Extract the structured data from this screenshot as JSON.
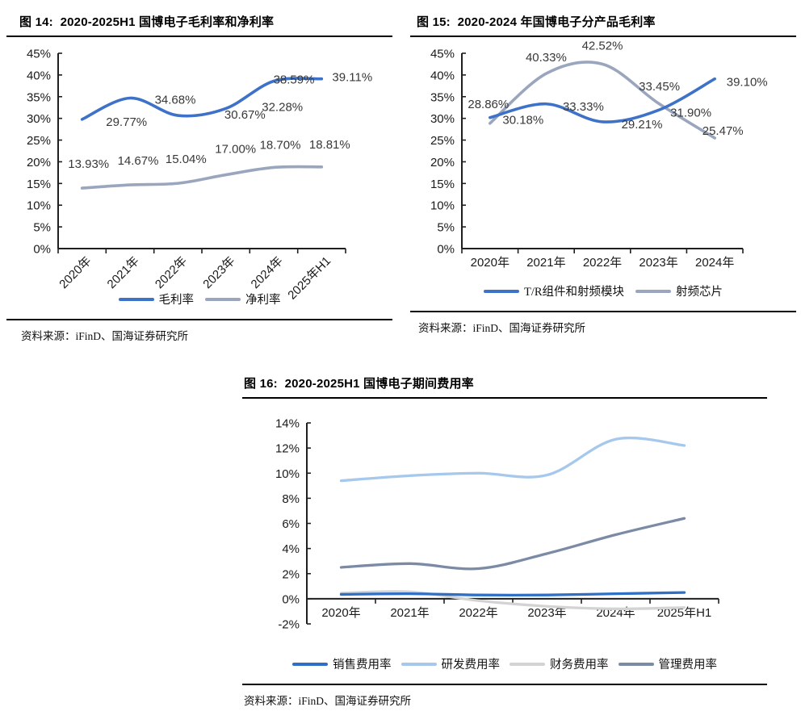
{
  "page": {
    "background": "#ffffff"
  },
  "chart_data": [
    {
      "id": "fig14",
      "type": "line",
      "title": "图 14:  2020-2025H1 国博电子毛利率和净利率",
      "source": "资料来源：iFinD、国海证券研究所",
      "categories": [
        "2020年",
        "2021年",
        "2022年",
        "2023年",
        "2024年",
        "2025年H1"
      ],
      "ylim": [
        0,
        45
      ],
      "ytick_step": 5,
      "ytick_suffix": "%",
      "grid": false,
      "legend_position": "bottom",
      "x_labels_rotated": true,
      "series": [
        {
          "name": "毛利率",
          "color": "#3E72C8",
          "values": [
            29.77,
            34.68,
            30.67,
            32.28,
            38.59,
            39.11
          ],
          "data_labels": [
            "29.77%",
            "34.68%",
            "30.67%",
            "32.28%",
            "38.59%",
            "39.11%"
          ],
          "label_offsets": [
            [
              55,
              3
            ],
            [
              56,
              2
            ],
            [
              83,
              -1
            ],
            [
              70,
              -2
            ],
            [
              25,
              -2
            ],
            [
              38,
              -2
            ]
          ]
        },
        {
          "name": "净利率",
          "color": "#9AA5BE",
          "values": [
            13.93,
            14.67,
            15.04,
            17.0,
            18.7,
            18.81
          ],
          "data_labels": [
            "13.93%",
            "14.67%",
            "15.04%",
            "17.00%",
            "18.70%",
            "18.81%"
          ],
          "label_offsets": [
            [
              8,
              -30
            ],
            [
              10,
              -30
            ],
            [
              10,
              -30
            ],
            [
              12,
              -32
            ],
            [
              8,
              -28
            ],
            [
              10,
              -28
            ]
          ]
        }
      ]
    },
    {
      "id": "fig15",
      "type": "line",
      "title": "图 15:  2020-2024 年国博电子分产品毛利率",
      "source": "资料来源：iFinD、国海证券研究所",
      "categories": [
        "2020年",
        "2021年",
        "2022年",
        "2023年",
        "2024年"
      ],
      "ylim": [
        0,
        45
      ],
      "ytick_step": 5,
      "ytick_suffix": "%",
      "grid": false,
      "legend_position": "bottom",
      "x_labels_rotated": false,
      "series": [
        {
          "name": "T/R组件和射频模块",
          "color": "#3E72C8",
          "values": [
            30.18,
            33.33,
            29.21,
            31.9,
            39.1
          ],
          "data_labels": [
            "30.18%",
            "33.33%",
            "29.21%",
            "31.90%",
            "39.10%"
          ],
          "label_offsets": [
            [
              41,
              3
            ],
            [
              46,
              3
            ],
            [
              49,
              3
            ],
            [
              40,
              3
            ],
            [
              40,
              4
            ]
          ]
        },
        {
          "name": "射频芯片",
          "color": "#9AA5BE",
          "values": [
            28.86,
            40.33,
            42.52,
            33.45,
            25.47
          ],
          "data_labels": [
            "28.86%",
            "40.33%",
            "42.52%",
            "33.45%",
            "25.47%"
          ],
          "label_offsets": [
            [
              -2,
              -24
            ],
            [
              0,
              -20
            ],
            [
              0,
              -23
            ],
            [
              1,
              -21
            ],
            [
              10,
              -9
            ]
          ]
        }
      ]
    },
    {
      "id": "fig16",
      "type": "line",
      "title": "图 16:  2020-2025H1 国博电子期间费用率",
      "source": "资料来源：iFinD、国海证券研究所",
      "categories": [
        "2020年",
        "2021年",
        "2022年",
        "2023年",
        "2024年",
        "2025年H1"
      ],
      "ylim": [
        -2,
        14
      ],
      "ytick_step": 2,
      "ytick_suffix": "%",
      "grid": false,
      "legend_position": "bottom",
      "x_labels_rotated": false,
      "series": [
        {
          "name": "销售费用率",
          "color": "#2F6FC5",
          "values": [
            0.35,
            0.4,
            0.3,
            0.3,
            0.4,
            0.5
          ]
        },
        {
          "name": "研发费用率",
          "color": "#A6C8EC",
          "values": [
            9.4,
            9.8,
            10.0,
            9.85,
            12.7,
            12.2
          ]
        },
        {
          "name": "财务费用率",
          "color": "#D3D3D3",
          "values": [
            0.45,
            0.55,
            -0.15,
            -0.6,
            -0.8,
            -0.7
          ]
        },
        {
          "name": "管理费用率",
          "color": "#7C8BA5",
          "values": [
            2.5,
            2.8,
            2.4,
            3.6,
            5.1,
            6.4
          ]
        }
      ]
    }
  ]
}
